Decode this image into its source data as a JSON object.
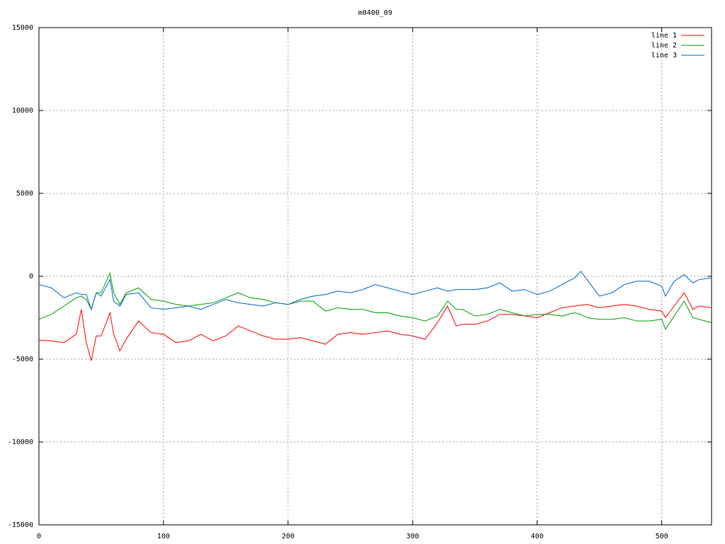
{
  "chart_data": {
    "type": "line",
    "title": "m0400_09",
    "x": [
      0,
      10,
      20,
      30,
      34,
      38,
      42,
      46,
      50,
      57,
      60,
      65,
      70,
      80,
      90,
      100,
      110,
      120,
      130,
      140,
      150,
      160,
      170,
      180,
      190,
      200,
      210,
      220,
      230,
      240,
      250,
      260,
      270,
      280,
      290,
      300,
      310,
      320,
      328,
      335,
      340,
      350,
      360,
      370,
      380,
      390,
      400,
      410,
      420,
      430,
      435,
      440,
      450,
      460,
      470,
      480,
      490,
      500,
      503,
      510,
      518,
      525,
      530,
      540
    ],
    "series": [
      {
        "name": "line 1",
        "color": "#ff0000",
        "values": [
          -3850,
          -3900,
          -4000,
          -3500,
          -2000,
          -4000,
          -5100,
          -3600,
          -3600,
          -2200,
          -3500,
          -4500,
          -3800,
          -2700,
          -3400,
          -3500,
          -4000,
          -3900,
          -3500,
          -3900,
          -3600,
          -3000,
          -3300,
          -3600,
          -3800,
          -3800,
          -3700,
          -3900,
          -4100,
          -3500,
          -3400,
          -3500,
          -3400,
          -3300,
          -3500,
          -3600,
          -3800,
          -2800,
          -1800,
          -3000,
          -2900,
          -2900,
          -2700,
          -2300,
          -2300,
          -2400,
          -2500,
          -2200,
          -1900,
          -1800,
          -1750,
          -1700,
          -1900,
          -1800,
          -1700,
          -1800,
          -2000,
          -2100,
          -2500,
          -1800,
          -1000,
          -2000,
          -1800,
          -1900
        ]
      },
      {
        "name": "line 2",
        "color": "#00a000",
        "values": [
          -2600,
          -2300,
          -1800,
          -1300,
          -1200,
          -1400,
          -2000,
          -1000,
          -1000,
          200,
          -1000,
          -1700,
          -1000,
          -700,
          -1400,
          -1500,
          -1700,
          -1800,
          -1700,
          -1600,
          -1300,
          -1000,
          -1300,
          -1400,
          -1600,
          -1700,
          -1500,
          -1500,
          -2100,
          -1900,
          -2000,
          -2000,
          -2200,
          -2200,
          -2400,
          -2500,
          -2700,
          -2400,
          -1500,
          -2000,
          -2000,
          -2400,
          -2300,
          -2000,
          -2200,
          -2400,
          -2300,
          -2300,
          -2400,
          -2200,
          -2300,
          -2500,
          -2600,
          -2600,
          -2500,
          -2700,
          -2700,
          -2600,
          -3200,
          -2400,
          -1500,
          -2500,
          -2600,
          -2800
        ]
      },
      {
        "name": "line 3",
        "color": "#0066cc",
        "values": [
          -500,
          -700,
          -1300,
          -1000,
          -1100,
          -1100,
          -2000,
          -1000,
          -1200,
          -200,
          -1500,
          -1800,
          -1100,
          -1000,
          -1900,
          -2000,
          -1900,
          -1800,
          -2000,
          -1700,
          -1400,
          -1600,
          -1700,
          -1800,
          -1600,
          -1700,
          -1400,
          -1200,
          -1100,
          -900,
          -1000,
          -800,
          -500,
          -700,
          -900,
          -1100,
          -900,
          -700,
          -900,
          -800,
          -800,
          -800,
          -700,
          -400,
          -900,
          -800,
          -1100,
          -900,
          -500,
          -100,
          300,
          -200,
          -1200,
          -1000,
          -500,
          -300,
          -300,
          -600,
          -1200,
          -300,
          100,
          -400,
          -200,
          -100
        ]
      }
    ],
    "xlim": [
      0,
      540
    ],
    "xticks": [
      0,
      100,
      200,
      300,
      400,
      500
    ],
    "ylim": [
      -15000,
      15000
    ],
    "yticks": [
      -15000,
      -10000,
      -5000,
      0,
      5000,
      10000,
      15000
    ],
    "grid": true,
    "legend": "top-right"
  }
}
